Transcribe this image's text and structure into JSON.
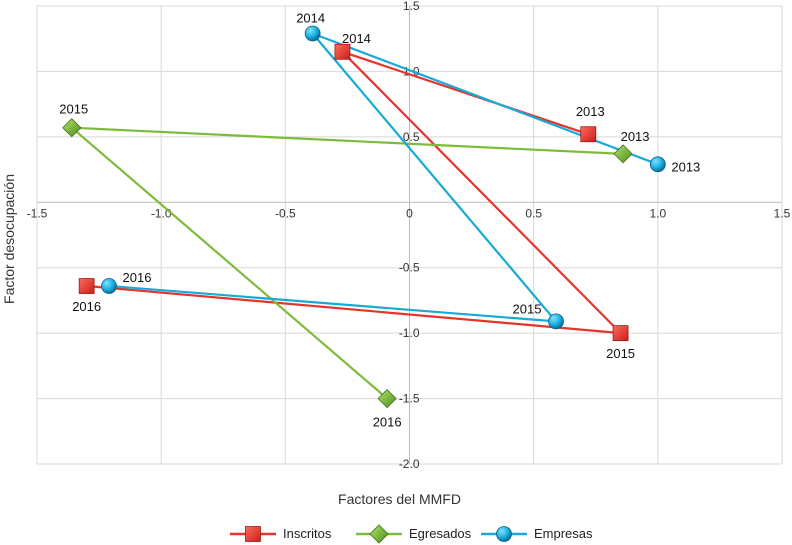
{
  "chart_data": {
    "type": "line",
    "title": "",
    "xlabel": "Factores del MMFD",
    "ylabel": "Factor desocupación",
    "xlim": [
      -1.5,
      1.5
    ],
    "ylim": [
      -2.0,
      1.5
    ],
    "x_ticks": [
      "-1.5",
      "-1.0",
      "-0.5",
      "0",
      "0.5",
      "1.0",
      "1.5"
    ],
    "y_ticks": [
      "1.5",
      "1.0",
      "0.5",
      "-0.5",
      "-1.0",
      "-1.5",
      "-2.0"
    ],
    "grid": true,
    "legend": {
      "position": "bottom-center",
      "entries": [
        "Inscritos",
        "Egresados",
        "Empresas"
      ]
    },
    "series": [
      {
        "name": "Inscritos",
        "color": "#e5342b",
        "marker": "square",
        "points": [
          {
            "label": "2013",
            "x": 0.72,
            "y": 0.52
          },
          {
            "label": "2014",
            "x": -0.27,
            "y": 1.15
          },
          {
            "label": "2015",
            "x": 0.85,
            "y": -1.0
          },
          {
            "label": "2016",
            "x": -1.3,
            "y": -0.64
          }
        ]
      },
      {
        "name": "Egresados",
        "color": "#7dbb3a",
        "marker": "diamond",
        "points": [
          {
            "label": "2013",
            "x": 0.86,
            "y": 0.37
          },
          {
            "label": "2015",
            "x": -1.36,
            "y": 0.57
          },
          {
            "label": "2016",
            "x": -0.09,
            "y": -1.5
          }
        ]
      },
      {
        "name": "Empresas",
        "color": "#17a9d8",
        "marker": "circle",
        "points": [
          {
            "label": "2013",
            "x": 1.0,
            "y": 0.29
          },
          {
            "label": "2014",
            "x": -0.39,
            "y": 1.29
          },
          {
            "label": "2015",
            "x": 0.59,
            "y": -0.91
          },
          {
            "label": "2016",
            "x": -1.21,
            "y": -0.64
          }
        ]
      }
    ]
  }
}
